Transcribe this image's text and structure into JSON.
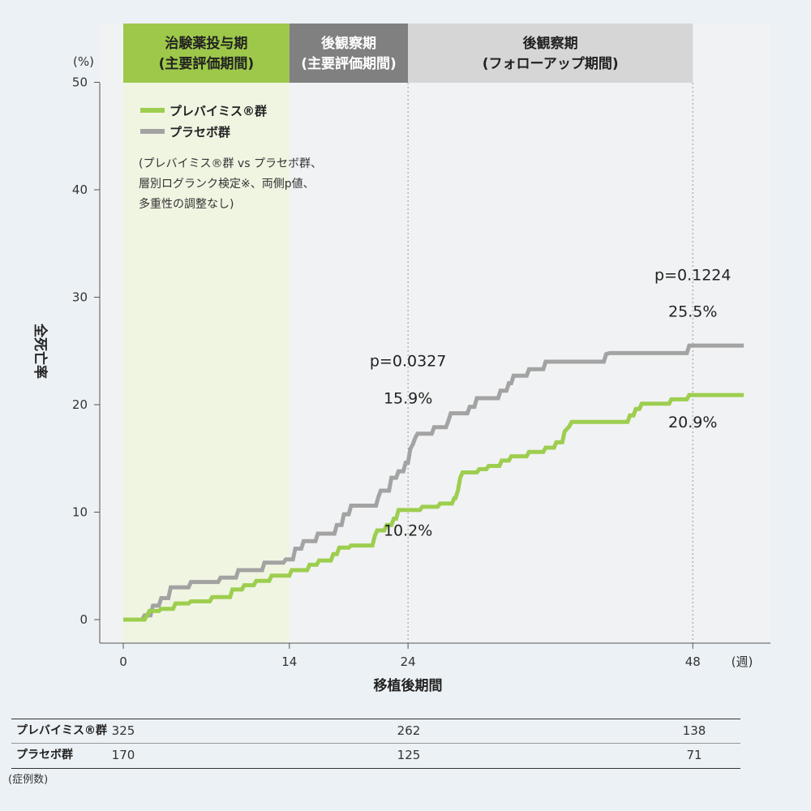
{
  "chart_data": {
    "type": "line",
    "step": true,
    "xlabel": "移植後期間",
    "x_unit": "(週)",
    "ylabel": "全死亡率",
    "y_unit": "(%)",
    "xlim": [
      0,
      51
    ],
    "ylim": [
      0,
      50
    ],
    "x_ticks": [
      0,
      14,
      24,
      48
    ],
    "y_ticks": [
      0,
      10,
      20,
      30,
      40,
      50
    ],
    "periods": [
      {
        "label_line1": "治験薬投与期",
        "label_line2": "(主要評価期間)",
        "x_start": 0,
        "x_end": 14,
        "header_color": "#9dc84a",
        "text_color": "#222222",
        "band_color": "#f0f5e2"
      },
      {
        "label_line1": "後観察期",
        "label_line2": "(主要評価期間)",
        "x_start": 14,
        "x_end": 24,
        "header_color": "#808080",
        "text_color": "#ffffff",
        "band_color": "#f1f2f3"
      },
      {
        "label_line1": "後観察期",
        "label_line2": "(フォローアップ期間)",
        "x_start": 24,
        "x_end": 48,
        "header_color": "#d6d6d6",
        "text_color": "#222222",
        "band_color": "#f1f2f3"
      }
    ],
    "series": [
      {
        "name": "プレバイミス®群",
        "color": "#9dce4f",
        "points": [
          [
            0,
            0
          ],
          [
            1.8,
            0
          ],
          [
            2,
            0.4
          ],
          [
            2.2,
            0.8
          ],
          [
            3,
            0.8
          ],
          [
            3.2,
            1
          ],
          [
            4.2,
            1
          ],
          [
            4.4,
            1.5
          ],
          [
            5.5,
            1.5
          ],
          [
            5.7,
            1.7
          ],
          [
            7.3,
            1.7
          ],
          [
            7.5,
            2.1
          ],
          [
            9,
            2.1
          ],
          [
            9.2,
            2.8
          ],
          [
            10,
            2.8
          ],
          [
            10.2,
            3.2
          ],
          [
            11,
            3.2
          ],
          [
            11.2,
            3.6
          ],
          [
            12.3,
            3.6
          ],
          [
            12.5,
            4.1
          ],
          [
            14,
            4.1
          ],
          [
            14.2,
            4.6
          ],
          [
            15.5,
            4.6
          ],
          [
            15.7,
            5.1
          ],
          [
            16.3,
            5.1
          ],
          [
            16.5,
            5.5
          ],
          [
            17.5,
            5.5
          ],
          [
            17.7,
            6.1
          ],
          [
            18,
            6.1
          ],
          [
            18.2,
            6.7
          ],
          [
            19,
            6.7
          ],
          [
            19.2,
            6.9
          ],
          [
            21,
            6.9
          ],
          [
            21.2,
            7.8
          ],
          [
            21.4,
            8.3
          ],
          [
            22,
            8.3
          ],
          [
            22.2,
            8.8
          ],
          [
            22.6,
            8.8
          ],
          [
            22.8,
            9.4
          ],
          [
            23,
            9.4
          ],
          [
            23.2,
            10.2
          ],
          [
            25,
            10.2
          ],
          [
            25.2,
            10.5
          ],
          [
            26.5,
            10.5
          ],
          [
            26.7,
            10.8
          ],
          [
            27.7,
            10.8
          ],
          [
            27.9,
            11.3
          ],
          [
            28,
            11.3
          ],
          [
            28.2,
            12
          ],
          [
            28.4,
            13.2
          ],
          [
            28.6,
            13.7
          ],
          [
            29.8,
            13.7
          ],
          [
            30,
            14
          ],
          [
            30.6,
            14
          ],
          [
            30.8,
            14.3
          ],
          [
            31.7,
            14.3
          ],
          [
            31.9,
            14.8
          ],
          [
            32.5,
            14.8
          ],
          [
            32.7,
            15.2
          ],
          [
            34,
            15.2
          ],
          [
            34.2,
            15.6
          ],
          [
            35.4,
            15.6
          ],
          [
            35.6,
            16
          ],
          [
            36.3,
            16
          ],
          [
            36.5,
            16.5
          ],
          [
            37,
            16.5
          ],
          [
            37.2,
            17.5
          ],
          [
            37.6,
            18
          ],
          [
            37.8,
            18.4
          ],
          [
            42.5,
            18.4
          ],
          [
            42.7,
            19
          ],
          [
            43,
            19
          ],
          [
            43.2,
            19.6
          ],
          [
            43.5,
            19.6
          ],
          [
            43.7,
            20.1
          ],
          [
            46,
            20.1
          ],
          [
            46.2,
            20.5
          ],
          [
            47.5,
            20.5
          ],
          [
            47.7,
            20.9
          ],
          [
            52.3,
            20.9
          ]
        ]
      },
      {
        "name": "プラセボ群",
        "color": "#a3a3a3",
        "points": [
          [
            0,
            0
          ],
          [
            1.6,
            0
          ],
          [
            1.8,
            0.4
          ],
          [
            2.3,
            0.4
          ],
          [
            2.5,
            1.3
          ],
          [
            3,
            1.3
          ],
          [
            3.2,
            2
          ],
          [
            3.8,
            2
          ],
          [
            4,
            3
          ],
          [
            5.5,
            3
          ],
          [
            5.7,
            3.5
          ],
          [
            8,
            3.5
          ],
          [
            8.2,
            3.9
          ],
          [
            9.5,
            3.9
          ],
          [
            9.7,
            4.6
          ],
          [
            11.7,
            4.6
          ],
          [
            11.9,
            5.3
          ],
          [
            13.5,
            5.3
          ],
          [
            13.7,
            5.6
          ],
          [
            14.3,
            5.6
          ],
          [
            14.5,
            6.6
          ],
          [
            15,
            6.6
          ],
          [
            15.2,
            7.3
          ],
          [
            16.2,
            7.3
          ],
          [
            16.4,
            8
          ],
          [
            17.8,
            8
          ],
          [
            18,
            8.8
          ],
          [
            18.4,
            8.8
          ],
          [
            18.6,
            9.8
          ],
          [
            19,
            9.8
          ],
          [
            19.2,
            10.6
          ],
          [
            21.3,
            10.6
          ],
          [
            21.5,
            11.4
          ],
          [
            21.7,
            12
          ],
          [
            22.4,
            12
          ],
          [
            22.6,
            13.2
          ],
          [
            23,
            13.2
          ],
          [
            23.2,
            13.8
          ],
          [
            23.6,
            13.8
          ],
          [
            23.8,
            14.6
          ],
          [
            24,
            14.6
          ],
          [
            24.2,
            15.9
          ],
          [
            24.4,
            16.3
          ],
          [
            24.6,
            16.9
          ],
          [
            24.8,
            17.3
          ],
          [
            26,
            17.3
          ],
          [
            26.2,
            17.9
          ],
          [
            27.2,
            17.9
          ],
          [
            27.4,
            18.5
          ],
          [
            27.6,
            19.2
          ],
          [
            29,
            19.2
          ],
          [
            29.2,
            19.8
          ],
          [
            29.6,
            19.8
          ],
          [
            29.8,
            20.6
          ],
          [
            31.6,
            20.6
          ],
          [
            31.8,
            21.3
          ],
          [
            32.3,
            21.3
          ],
          [
            32.5,
            22
          ],
          [
            32.7,
            22
          ],
          [
            32.9,
            22.7
          ],
          [
            34,
            22.7
          ],
          [
            34.2,
            23.3
          ],
          [
            35.4,
            23.3
          ],
          [
            35.6,
            24
          ],
          [
            40.5,
            24
          ],
          [
            40.7,
            24.7
          ],
          [
            41,
            24.8
          ],
          [
            47.5,
            24.8
          ],
          [
            47.7,
            25.5
          ],
          [
            52.3,
            25.5
          ]
        ]
      }
    ],
    "annotations": [
      {
        "text": "p=0.0327",
        "x": 24,
        "y": 23.6
      },
      {
        "text": "15.9%",
        "x": 24,
        "y": 20.1
      },
      {
        "text": "10.2%",
        "x": 24,
        "y": 7.8
      },
      {
        "text": "p=0.1224",
        "x": 48,
        "y": 31.6
      },
      {
        "text": "25.5%",
        "x": 48,
        "y": 28.2
      },
      {
        "text": "20.9%",
        "x": 48,
        "y": 17.9
      }
    ],
    "legend": {
      "position": "top-left",
      "note_lines": [
        "(プレバイミス®群 vs プラセボ群、",
        "層別ログランク検定※、両側p値、",
        "多重性の調整なし)"
      ]
    }
  },
  "risk_table": {
    "rows": [
      {
        "name": "プレバイミス®群",
        "values": [
          "325",
          "262",
          "138"
        ]
      },
      {
        "name": "プラセボ群",
        "values": [
          "170",
          "125",
          "71"
        ]
      }
    ],
    "x_weeks": [
      0,
      24,
      48
    ],
    "note": "(症例数)"
  }
}
